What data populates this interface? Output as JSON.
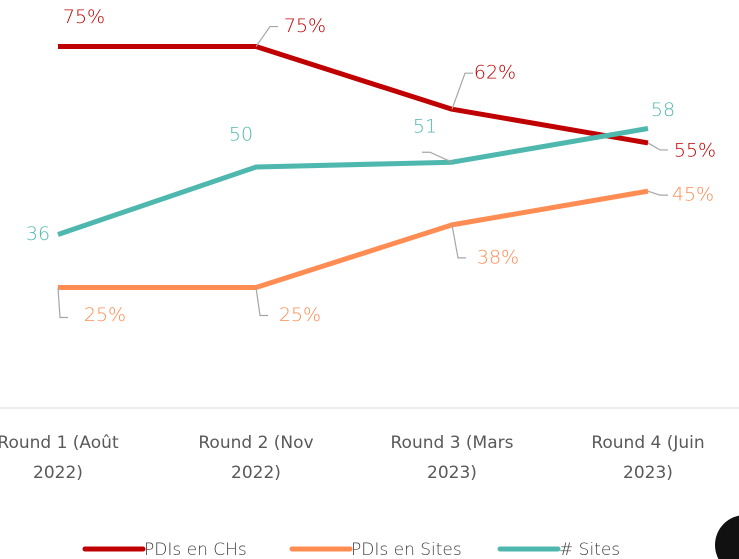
{
  "chart_data": {
    "type": "line",
    "categories": [
      "Round 1 (Août 2022)",
      "Round 2 (Nov 2022)",
      "Round 3 (Mars 2023)",
      "Round 4 (Juin 2023)"
    ],
    "ylim": [
      0,
      83
    ],
    "series": [
      {
        "name": "PDIs en CHs",
        "color": "#c00000",
        "values": [
          75,
          75,
          62,
          55
        ],
        "value_labels": [
          "75%",
          "75%",
          "62%",
          "55%"
        ]
      },
      {
        "name": "PDIs en Sites",
        "color": "#ff8c52",
        "values": [
          25,
          25,
          38,
          45
        ],
        "value_labels": [
          "25%",
          "25%",
          "38%",
          "45%"
        ]
      },
      {
        "name": "# Sites",
        "color": "#4fb8ae",
        "values": [
          36,
          50,
          51,
          58
        ]
      }
    ]
  }
}
